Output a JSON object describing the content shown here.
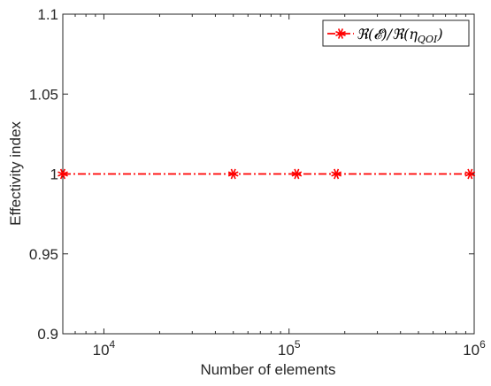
{
  "chart_data": {
    "type": "line",
    "title": "",
    "xlabel": "Number of elements",
    "ylabel": "Effectivity index",
    "xscale": "log",
    "xlim": [
      6000,
      1000000
    ],
    "ylim": [
      0.9,
      1.1
    ],
    "xticks": [
      {
        "value": 10000,
        "base": "10",
        "exp": "4"
      },
      {
        "value": 100000,
        "base": "10",
        "exp": "5"
      },
      {
        "value": 1000000,
        "base": "10",
        "exp": "6"
      }
    ],
    "yticks": [
      {
        "value": 0.9,
        "label": "0.9"
      },
      {
        "value": 0.95,
        "label": "0.95"
      },
      {
        "value": 1.0,
        "label": "1"
      },
      {
        "value": 1.05,
        "label": "1.05"
      },
      {
        "value": 1.1,
        "label": "1.1"
      }
    ],
    "grid": false,
    "legend_position": "top-right",
    "series": [
      {
        "name": "ℜ(𝓔)/ℜ(η_QOI)",
        "color": "#ff0000",
        "line_style": "dash-dot",
        "marker": "asterisk",
        "x": [
          6000,
          50000,
          110000,
          180000,
          950000
        ],
        "y": [
          1.0,
          1.0,
          1.0,
          1.0,
          1.0
        ]
      }
    ],
    "legend": {
      "prefix": "ℜ(𝓔)/ℜ(η",
      "subscript": "QOI",
      "suffix": ")"
    }
  }
}
